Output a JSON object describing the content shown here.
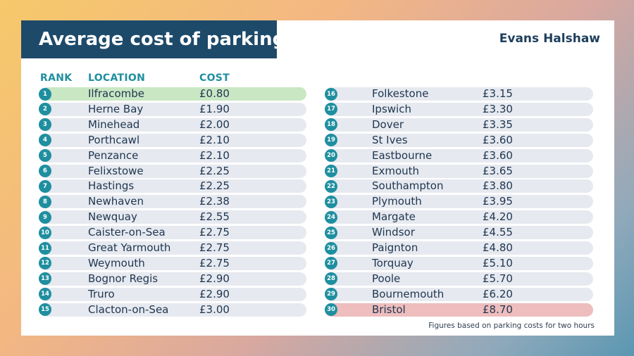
{
  "title": "Average cost of parking",
  "brand": "Evans Halshaw",
  "headers": {
    "rank": "RANK",
    "location": "LOCATION",
    "cost": "COST"
  },
  "rows": [
    {
      "rank": "1",
      "location": "Ilfracombe",
      "cost": "£0.80",
      "highlight": "green"
    },
    {
      "rank": "2",
      "location": "Herne Bay",
      "cost": "£1.90"
    },
    {
      "rank": "3",
      "location": "Minehead",
      "cost": "£2.00"
    },
    {
      "rank": "4",
      "location": "Porthcawl",
      "cost": "£2.10"
    },
    {
      "rank": "5",
      "location": "Penzance",
      "cost": "£2.10"
    },
    {
      "rank": "6",
      "location": "Felixstowe",
      "cost": "£2.25"
    },
    {
      "rank": "7",
      "location": "Hastings",
      "cost": "£2.25"
    },
    {
      "rank": "8",
      "location": "Newhaven",
      "cost": "£2.38"
    },
    {
      "rank": "9",
      "location": "Newquay",
      "cost": "£2.55"
    },
    {
      "rank": "10",
      "location": "Caister-on-Sea",
      "cost": "£2.75"
    },
    {
      "rank": "11",
      "location": "Great Yarmouth",
      "cost": "£2.75"
    },
    {
      "rank": "12",
      "location": "Weymouth",
      "cost": "£2.75"
    },
    {
      "rank": "13",
      "location": "Bognor Regis",
      "cost": "£2.90"
    },
    {
      "rank": "14",
      "location": "Truro",
      "cost": "£2.90"
    },
    {
      "rank": "15",
      "location": "Clacton-on-Sea",
      "cost": "£3.00"
    },
    {
      "rank": "16",
      "location": "Folkestone",
      "cost": "£3.15"
    },
    {
      "rank": "17",
      "location": "Ipswich",
      "cost": "£3.30"
    },
    {
      "rank": "18",
      "location": "Dover",
      "cost": "£3.35"
    },
    {
      "rank": "19",
      "location": "St Ives",
      "cost": "£3.60"
    },
    {
      "rank": "20",
      "location": "Eastbourne",
      "cost": "£3.60"
    },
    {
      "rank": "21",
      "location": "Exmouth",
      "cost": "£3.65"
    },
    {
      "rank": "22",
      "location": "Southampton",
      "cost": "£3.80"
    },
    {
      "rank": "23",
      "location": "Plymouth",
      "cost": "£3.95"
    },
    {
      "rank": "24",
      "location": "Margate",
      "cost": "£4.20"
    },
    {
      "rank": "25",
      "location": "Windsor",
      "cost": "£4.55"
    },
    {
      "rank": "26",
      "location": "Paignton",
      "cost": "£4.80"
    },
    {
      "rank": "27",
      "location": "Torquay",
      "cost": "£5.10"
    },
    {
      "rank": "28",
      "location": "Poole",
      "cost": "£5.70"
    },
    {
      "rank": "29",
      "location": "Bournemouth",
      "cost": "£6.20"
    },
    {
      "rank": "30",
      "location": "Bristol",
      "cost": "£8.70",
      "highlight": "red"
    }
  ],
  "footnote": "Figures based on parking costs for two hours",
  "colors": {
    "title_bg": "#1e4a6a",
    "accent": "#1f8fa0",
    "row_bg": "#e6e9ef",
    "highlight_green": "#c9e7c3",
    "highlight_red": "#eebdbd"
  }
}
